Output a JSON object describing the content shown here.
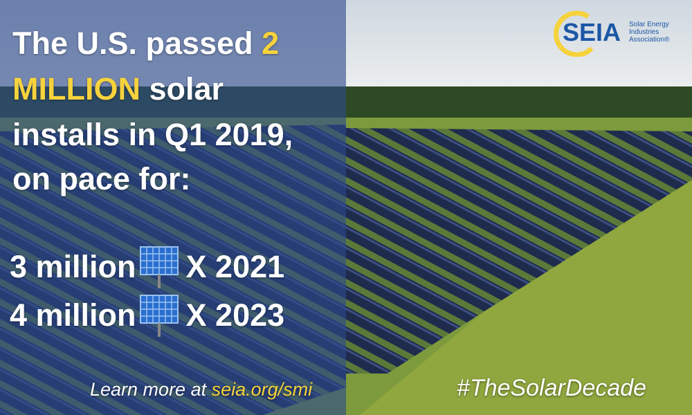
{
  "headline": {
    "line1": "The U.S. passed ",
    "line1_em": "2",
    "line2_em": "MILLION",
    "line2": " solar",
    "line3": "installs in Q1 2019,",
    "line4": "on pace for:"
  },
  "stats": [
    {
      "amount": "3 million",
      "year": "X 2021"
    },
    {
      "amount": "4 million",
      "year": "X 2023"
    }
  ],
  "footer": {
    "lead": "Learn more at ",
    "link": "seia.org/smi",
    "hashtag": "#TheSolarDecade"
  },
  "logo": {
    "name": "SEIA",
    "lines": [
      "Solar Energy",
      "Industries",
      "Association®"
    ]
  }
}
